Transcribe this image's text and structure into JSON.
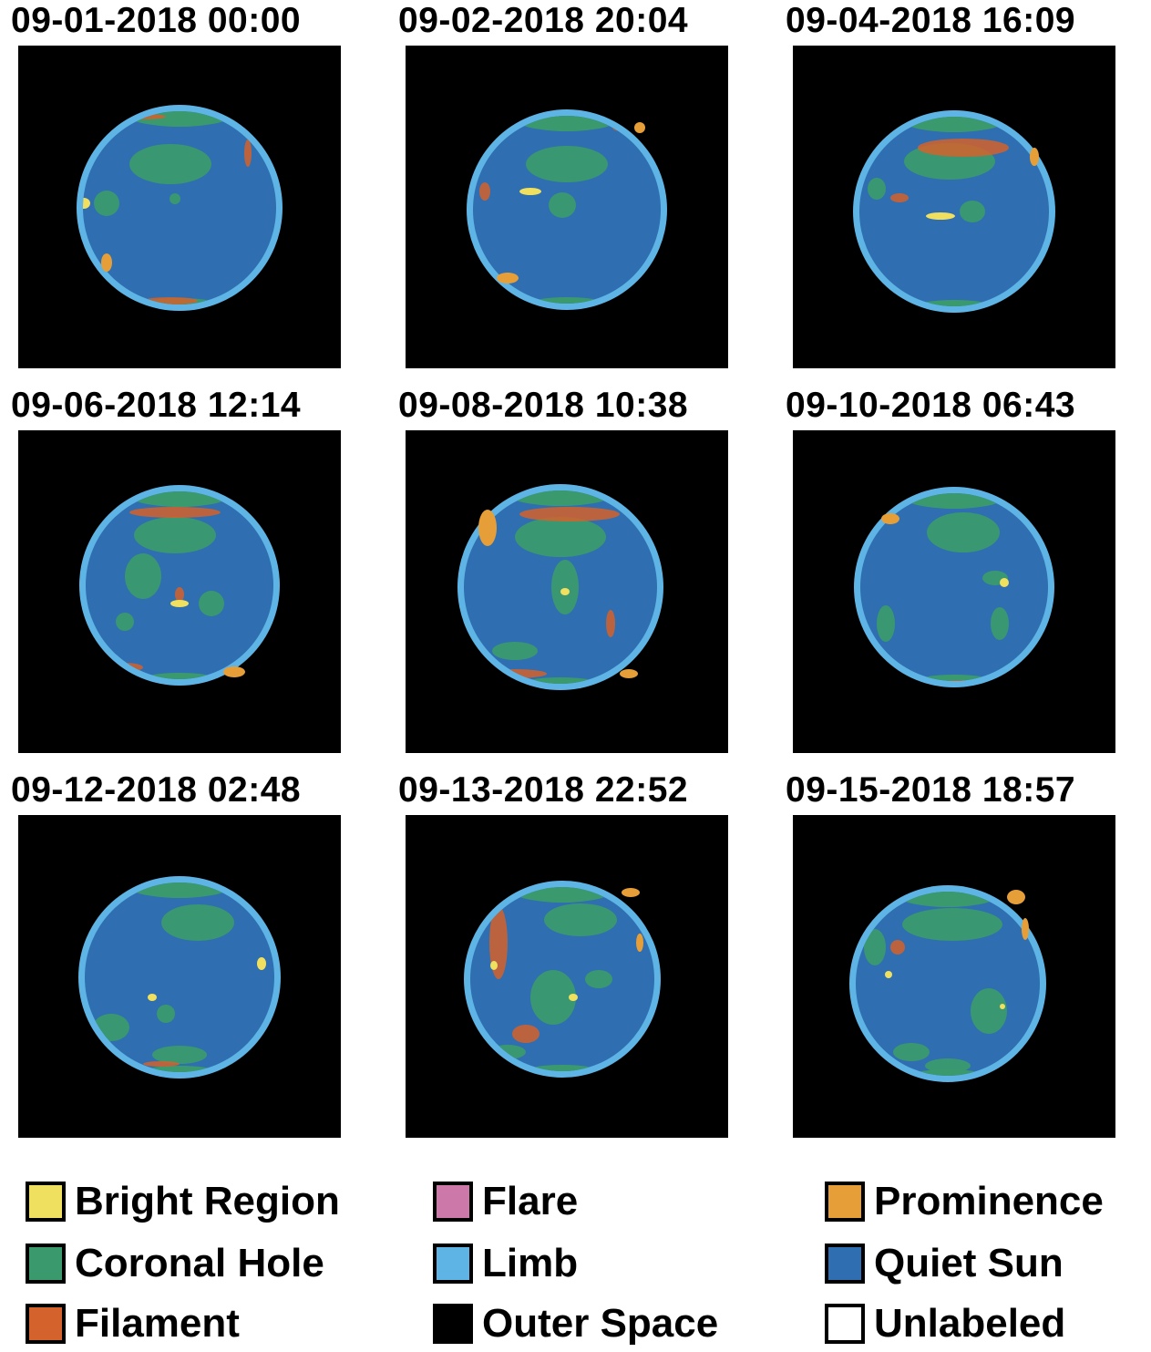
{
  "panels": [
    {
      "title": "09-01-2018 00:00"
    },
    {
      "title": "09-02-2018 20:04"
    },
    {
      "title": "09-04-2018 16:09"
    },
    {
      "title": "09-06-2018 12:14"
    },
    {
      "title": "09-08-2018 10:38"
    },
    {
      "title": "09-10-2018 06:43"
    },
    {
      "title": "09-12-2018 02:48"
    },
    {
      "title": "09-13-2018 22:52"
    },
    {
      "title": "09-15-2018 18:57"
    }
  ],
  "legend": [
    {
      "label": "Bright Region",
      "color": "#f0e060"
    },
    {
      "label": "Flare",
      "color": "#cc78a8"
    },
    {
      "label": "Prominence",
      "color": "#e69f38"
    },
    {
      "label": "Coronal Hole",
      "color": "#3a9a6e"
    },
    {
      "label": "Limb",
      "color": "#5db4e5"
    },
    {
      "label": "Quiet Sun",
      "color": "#2f6eb0"
    },
    {
      "label": "Filament",
      "color": "#d4622c"
    },
    {
      "label": "Outer Space",
      "color": "#000000"
    },
    {
      "label": "Unlabeled",
      "color": "#ffffff"
    }
  ]
}
